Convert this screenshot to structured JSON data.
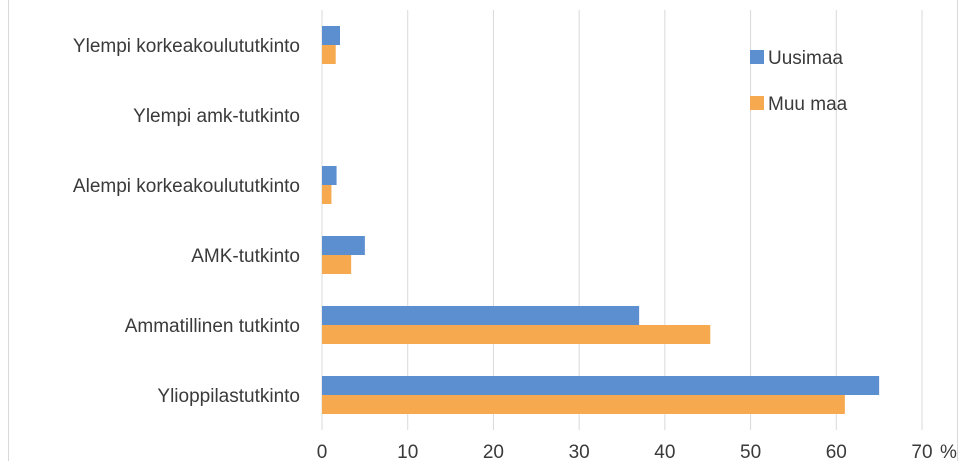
{
  "chart_data": {
    "type": "bar",
    "orientation": "horizontal",
    "categories": [
      "Ylioppilastutkinto",
      "Ammatillinen tutkinto",
      "AMK-tutkinto",
      "Alempi korkeakoulututkinto",
      "Ylempi amk-tutkinto",
      "Ylempi korkeakoulututkinto"
    ],
    "series": [
      {
        "name": "Uusimaa",
        "color": "#5b8fcf",
        "values": [
          65,
          37,
          5,
          1.7,
          0,
          2.1
        ]
      },
      {
        "name": "Muu maa",
        "color": "#f7a94f",
        "values": [
          61,
          45.3,
          3.4,
          1.1,
          0,
          1.6
        ]
      }
    ],
    "xlim": [
      0,
      70
    ],
    "xticks": [
      "0",
      "10",
      "20",
      "30",
      "40",
      "50",
      "60",
      "70"
    ],
    "xunit": "%",
    "grid": true,
    "legend_position": "top-right"
  }
}
